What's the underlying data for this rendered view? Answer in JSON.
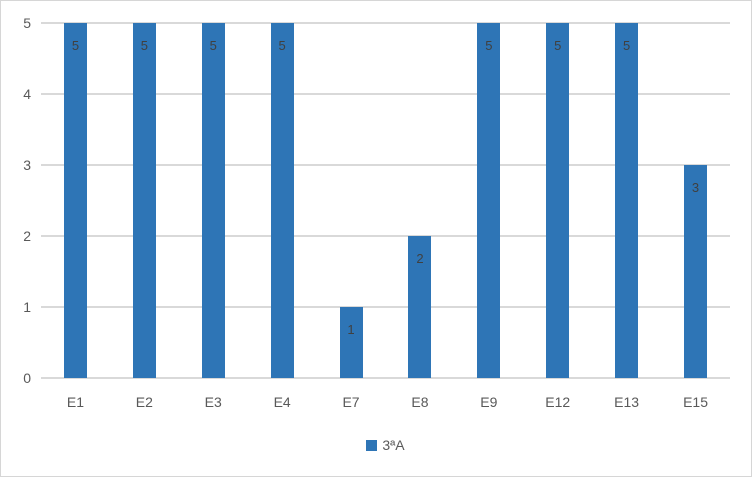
{
  "chart_data": {
    "type": "bar",
    "title": "",
    "categories": [
      "E1",
      "E2",
      "E3",
      "E4",
      "E7",
      "E8",
      "E9",
      "E12",
      "E13",
      "E15"
    ],
    "series": [
      {
        "name": "3ªA",
        "values": [
          5,
          5,
          5,
          5,
          1,
          2,
          5,
          5,
          5,
          3
        ]
      }
    ],
    "data_labels": [
      5,
      5,
      5,
      5,
      1,
      2,
      5,
      5,
      5,
      3
    ],
    "xlabel": "",
    "ylabel": "",
    "ylim": [
      0,
      5
    ],
    "yticks": [
      0,
      1,
      2,
      3,
      4,
      5
    ],
    "grid": "horizontal",
    "legend_position": "bottom-center",
    "data_label_position": "inside-end",
    "colors": {
      "bar": "#2e75b6",
      "gridline": "#d9d9d9",
      "axis_text": "#595959",
      "data_label_text": "#404040",
      "frame_border": "#d6d6d6",
      "background": "#ffffff"
    }
  }
}
